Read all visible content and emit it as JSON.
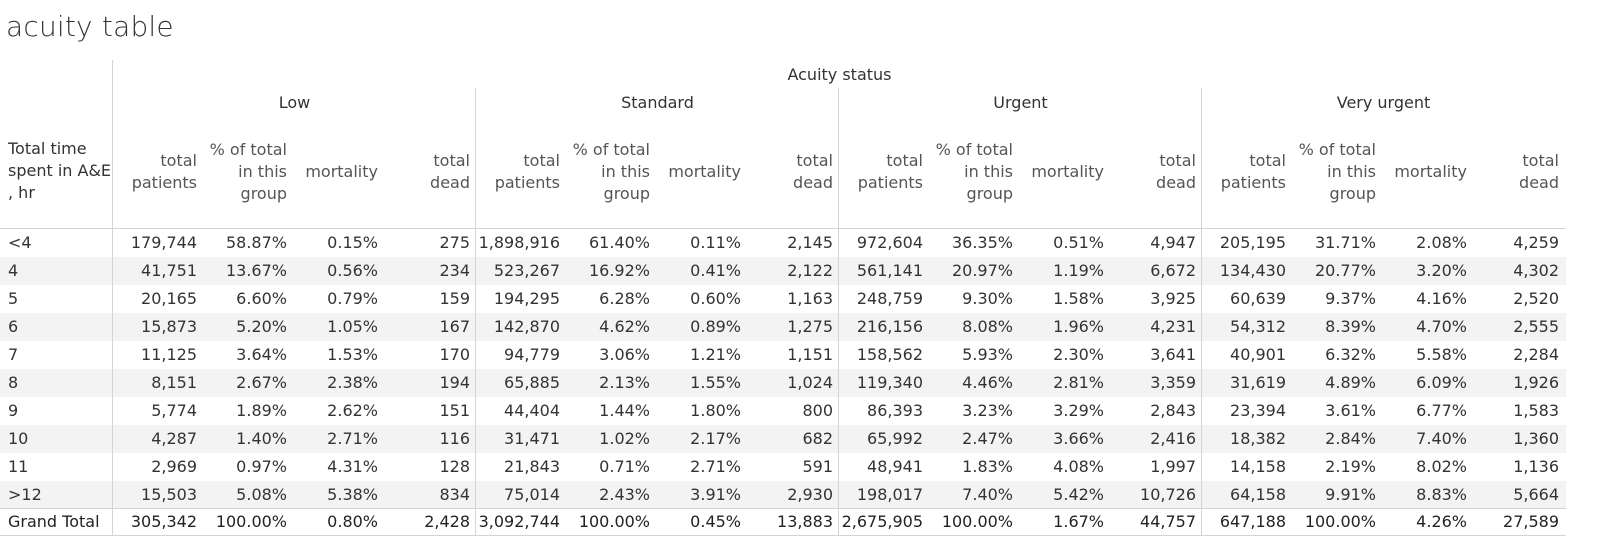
{
  "title": "acuity table",
  "chart_data": {
    "type": "table",
    "column_header": "Acuity status",
    "row_header": [
      "Total time",
      "spent in A&E",
      ", hr"
    ],
    "groups": [
      "Low",
      "Standard",
      "Urgent",
      "Very urgent"
    ],
    "measures": [
      [
        "total",
        "patients"
      ],
      [
        "% of total",
        "in this",
        "group"
      ],
      [
        "mortality"
      ],
      [
        "total",
        "dead"
      ]
    ],
    "rows": [
      {
        "label": "<4",
        "values": [
          "179,744",
          "58.87%",
          "0.15%",
          "275",
          "1,898,916",
          "61.40%",
          "0.11%",
          "2,145",
          "972,604",
          "36.35%",
          "0.51%",
          "4,947",
          "205,195",
          "31.71%",
          "2.08%",
          "4,259"
        ]
      },
      {
        "label": "4",
        "values": [
          "41,751",
          "13.67%",
          "0.56%",
          "234",
          "523,267",
          "16.92%",
          "0.41%",
          "2,122",
          "561,141",
          "20.97%",
          "1.19%",
          "6,672",
          "134,430",
          "20.77%",
          "3.20%",
          "4,302"
        ]
      },
      {
        "label": "5",
        "values": [
          "20,165",
          "6.60%",
          "0.79%",
          "159",
          "194,295",
          "6.28%",
          "0.60%",
          "1,163",
          "248,759",
          "9.30%",
          "1.58%",
          "3,925",
          "60,639",
          "9.37%",
          "4.16%",
          "2,520"
        ]
      },
      {
        "label": "6",
        "values": [
          "15,873",
          "5.20%",
          "1.05%",
          "167",
          "142,870",
          "4.62%",
          "0.89%",
          "1,275",
          "216,156",
          "8.08%",
          "1.96%",
          "4,231",
          "54,312",
          "8.39%",
          "4.70%",
          "2,555"
        ]
      },
      {
        "label": "7",
        "values": [
          "11,125",
          "3.64%",
          "1.53%",
          "170",
          "94,779",
          "3.06%",
          "1.21%",
          "1,151",
          "158,562",
          "5.93%",
          "2.30%",
          "3,641",
          "40,901",
          "6.32%",
          "5.58%",
          "2,284"
        ]
      },
      {
        "label": "8",
        "values": [
          "8,151",
          "2.67%",
          "2.38%",
          "194",
          "65,885",
          "2.13%",
          "1.55%",
          "1,024",
          "119,340",
          "4.46%",
          "2.81%",
          "3,359",
          "31,619",
          "4.89%",
          "6.09%",
          "1,926"
        ]
      },
      {
        "label": "9",
        "values": [
          "5,774",
          "1.89%",
          "2.62%",
          "151",
          "44,404",
          "1.44%",
          "1.80%",
          "800",
          "86,393",
          "3.23%",
          "3.29%",
          "2,843",
          "23,394",
          "3.61%",
          "6.77%",
          "1,583"
        ]
      },
      {
        "label": "10",
        "values": [
          "4,287",
          "1.40%",
          "2.71%",
          "116",
          "31,471",
          "1.02%",
          "2.17%",
          "682",
          "65,992",
          "2.47%",
          "3.66%",
          "2,416",
          "18,382",
          "2.84%",
          "7.40%",
          "1,360"
        ]
      },
      {
        "label": "11",
        "values": [
          "2,969",
          "0.97%",
          "4.31%",
          "128",
          "21,843",
          "0.71%",
          "2.71%",
          "591",
          "48,941",
          "1.83%",
          "4.08%",
          "1,997",
          "14,158",
          "2.19%",
          "8.02%",
          "1,136"
        ]
      },
      {
        "label": ">12",
        "values": [
          "15,503",
          "5.08%",
          "5.38%",
          "834",
          "75,014",
          "2.43%",
          "3.91%",
          "2,930",
          "198,017",
          "7.40%",
          "5.42%",
          "10,726",
          "64,158",
          "9.91%",
          "8.83%",
          "5,664"
        ]
      }
    ],
    "grand_total": {
      "label": "Grand Total",
      "values": [
        "305,342",
        "100.00%",
        "0.80%",
        "2,428",
        "3,092,744",
        "100.00%",
        "0.45%",
        "13,883",
        "2,675,905",
        "100.00%",
        "1.67%",
        "44,757",
        "647,188",
        "100.00%",
        "4.26%",
        "27,589"
      ]
    }
  }
}
